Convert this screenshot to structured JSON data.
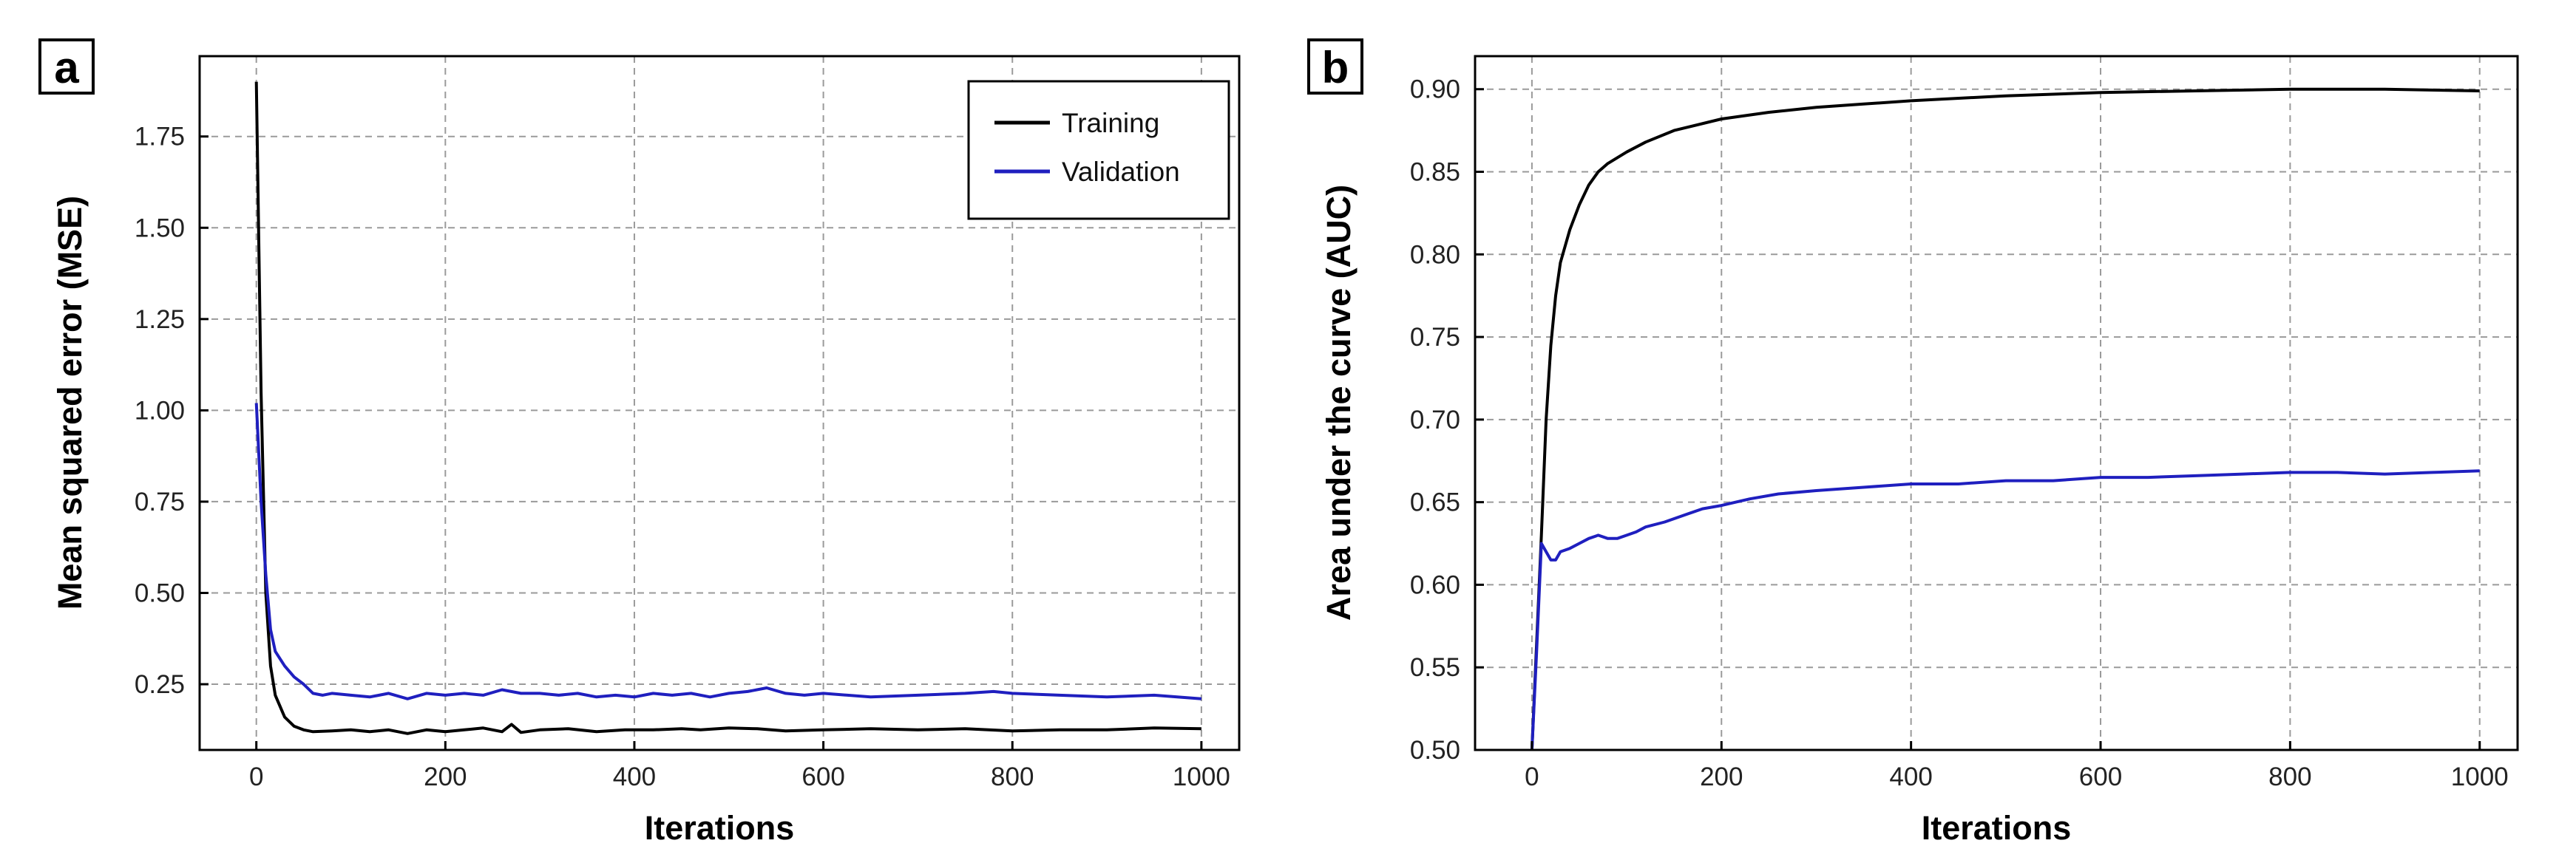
{
  "chart_data": [
    {
      "panel": "a",
      "type": "line",
      "title": "",
      "xlabel": "Iterations",
      "ylabel": "Mean squared error (MSE)",
      "xlim": [
        -60,
        1040
      ],
      "ylim": [
        0.07,
        1.97
      ],
      "xticks": [
        0,
        200,
        400,
        600,
        800,
        1000
      ],
      "xtick_labels": [
        "0",
        "200",
        "400",
        "600",
        "800",
        "1000"
      ],
      "yticks": [
        0.25,
        0.5,
        0.75,
        1.0,
        1.25,
        1.5,
        1.75
      ],
      "ytick_labels": [
        "0.25",
        "0.50",
        "0.75",
        "1.00",
        "1.25",
        "1.50",
        "1.75"
      ],
      "grid": true,
      "legend_position": "top-right",
      "series": [
        {
          "name": "Training",
          "color": "#000000",
          "x": [
            0,
            5,
            10,
            15,
            20,
            30,
            40,
            50,
            60,
            80,
            100,
            120,
            140,
            160,
            180,
            200,
            220,
            240,
            260,
            270,
            280,
            300,
            330,
            360,
            390,
            420,
            450,
            470,
            500,
            530,
            560,
            600,
            650,
            700,
            750,
            800,
            850,
            900,
            950,
            1000
          ],
          "y": [
            1.9,
            1.05,
            0.5,
            0.3,
            0.22,
            0.16,
            0.135,
            0.125,
            0.12,
            0.122,
            0.125,
            0.12,
            0.125,
            0.115,
            0.125,
            0.12,
            0.125,
            0.13,
            0.12,
            0.14,
            0.118,
            0.125,
            0.128,
            0.12,
            0.125,
            0.125,
            0.128,
            0.125,
            0.13,
            0.128,
            0.122,
            0.125,
            0.128,
            0.125,
            0.128,
            0.122,
            0.125,
            0.125,
            0.13,
            0.128
          ]
        },
        {
          "name": "Validation",
          "color": "#1f1fbf",
          "x": [
            0,
            5,
            10,
            15,
            20,
            30,
            40,
            50,
            60,
            70,
            80,
            100,
            120,
            140,
            160,
            180,
            200,
            220,
            240,
            260,
            280,
            300,
            320,
            340,
            360,
            380,
            400,
            420,
            440,
            460,
            480,
            500,
            520,
            540,
            560,
            580,
            600,
            650,
            700,
            750,
            780,
            800,
            850,
            900,
            950,
            1000
          ],
          "y": [
            1.02,
            0.75,
            0.55,
            0.4,
            0.34,
            0.3,
            0.27,
            0.25,
            0.225,
            0.22,
            0.225,
            0.22,
            0.215,
            0.225,
            0.21,
            0.225,
            0.22,
            0.225,
            0.22,
            0.235,
            0.225,
            0.225,
            0.22,
            0.225,
            0.215,
            0.22,
            0.215,
            0.225,
            0.22,
            0.225,
            0.215,
            0.225,
            0.23,
            0.24,
            0.225,
            0.22,
            0.225,
            0.215,
            0.22,
            0.225,
            0.23,
            0.225,
            0.22,
            0.215,
            0.22,
            0.21
          ]
        }
      ]
    },
    {
      "panel": "b",
      "type": "line",
      "title": "",
      "xlabel": "Iterations",
      "ylabel": "Area under the curve (AUC)",
      "xlim": [
        -60,
        1040
      ],
      "ylim": [
        0.5,
        0.92
      ],
      "xticks": [
        0,
        200,
        400,
        600,
        800,
        1000
      ],
      "xtick_labels": [
        "0",
        "200",
        "400",
        "600",
        "800",
        "1000"
      ],
      "yticks": [
        0.5,
        0.55,
        0.6,
        0.65,
        0.7,
        0.75,
        0.8,
        0.85,
        0.9
      ],
      "ytick_labels": [
        "0.50",
        "0.55",
        "0.60",
        "0.65",
        "0.70",
        "0.75",
        "0.80",
        "0.85",
        "0.90"
      ],
      "grid": true,
      "series": [
        {
          "name": "Training",
          "color": "#000000",
          "x": [
            0,
            5,
            10,
            15,
            20,
            25,
            30,
            40,
            50,
            60,
            70,
            80,
            100,
            120,
            150,
            200,
            250,
            300,
            350,
            400,
            500,
            600,
            700,
            800,
            900,
            1000
          ],
          "y": [
            0.5,
            0.565,
            0.63,
            0.7,
            0.745,
            0.775,
            0.795,
            0.815,
            0.83,
            0.842,
            0.85,
            0.855,
            0.862,
            0.868,
            0.875,
            0.882,
            0.886,
            0.889,
            0.891,
            0.893,
            0.896,
            0.898,
            0.899,
            0.9,
            0.9,
            0.899
          ]
        },
        {
          "name": "Validation",
          "color": "#1f1fbf",
          "x": [
            0,
            5,
            10,
            15,
            20,
            25,
            30,
            40,
            50,
            60,
            70,
            80,
            90,
            100,
            110,
            120,
            140,
            160,
            180,
            200,
            230,
            260,
            300,
            350,
            400,
            450,
            500,
            550,
            600,
            650,
            700,
            750,
            800,
            850,
            900,
            950,
            1000
          ],
          "y": [
            0.5,
            0.56,
            0.625,
            0.62,
            0.615,
            0.615,
            0.62,
            0.622,
            0.625,
            0.628,
            0.63,
            0.628,
            0.628,
            0.63,
            0.632,
            0.635,
            0.638,
            0.642,
            0.646,
            0.648,
            0.652,
            0.655,
            0.657,
            0.659,
            0.661,
            0.661,
            0.663,
            0.663,
            0.665,
            0.665,
            0.666,
            0.667,
            0.668,
            0.668,
            0.667,
            0.668,
            0.669
          ]
        }
      ]
    }
  ]
}
